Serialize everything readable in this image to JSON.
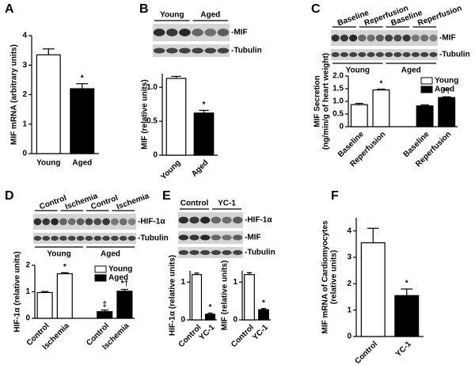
{
  "chart_data": [
    {
      "panel": "A",
      "type": "bar",
      "ylabel": [
        "MIF mRNA (arbitrary units)"
      ],
      "categories": [
        "Young",
        "Aged"
      ],
      "values": [
        3.35,
        2.2
      ],
      "errors": [
        0.2,
        0.17
      ],
      "colors": [
        "#ffffff",
        "#000000"
      ],
      "sig": [
        null,
        "*"
      ],
      "ylim": [
        0,
        4
      ],
      "yticks": [
        0,
        1,
        2,
        3,
        4
      ]
    },
    {
      "panel": "B",
      "type": "bar",
      "ylabel": [
        "MIF (relative units)"
      ],
      "categories": [
        "Young",
        "Aged"
      ],
      "values": [
        1.13,
        0.62
      ],
      "errors": [
        0.03,
        0.04
      ],
      "colors": [
        "#ffffff",
        "#000000"
      ],
      "sig": [
        null,
        "*"
      ],
      "ylim": [
        0,
        1.2
      ],
      "yticks": [
        0,
        0.5,
        {
          "value": 1,
          "label": "1.0"
        }
      ],
      "blot": {
        "top": [
          "Young",
          "Aged"
        ],
        "rows": [
          "-MIF",
          "-Tubulin"
        ]
      }
    },
    {
      "panel": "C",
      "type": "grouped_bar",
      "ylabel": [
        "MIF Secretion",
        "(ng/min/g of heart weight)"
      ],
      "categories": [
        "Baseline",
        "Reperfusion"
      ],
      "series": [
        {
          "name": "Young",
          "color": "#ffffff",
          "values": [
            0.87,
            1.45
          ],
          "errors": [
            0.05,
            0.03
          ],
          "sig": [
            null,
            "*"
          ]
        },
        {
          "name": "Aged",
          "color": "#000000",
          "values": [
            0.82,
            1.15
          ],
          "errors": [
            0.04,
            0.03
          ],
          "sig": [
            null,
            "*†"
          ]
        }
      ],
      "ylim": [
        0,
        2
      ],
      "yticks": [
        0,
        0.5,
        {
          "value": 1,
          "label": "1.0"
        },
        1.5,
        {
          "value": 2,
          "label": "2.0"
        }
      ],
      "blot": {
        "top": [
          "Baseline",
          "Reperfusion",
          "Baseline",
          "Reperfusion"
        ],
        "bottom": [
          "Young",
          "Aged"
        ],
        "rows": [
          "-MIF",
          "-Tubulin"
        ]
      }
    },
    {
      "panel": "D",
      "type": "grouped_bar",
      "ylabel": [
        "HIF-1α (relative units)"
      ],
      "categories": [
        "Control",
        "Ischemia"
      ],
      "series": [
        {
          "name": "Young",
          "color": "#ffffff",
          "values": [
            0.97,
            1.68
          ],
          "errors": [
            0.04,
            0.04
          ],
          "sig": [
            null,
            "*"
          ]
        },
        {
          "name": "Aged",
          "color": "#000000",
          "values": [
            0.25,
            1.02
          ],
          "errors": [
            0.06,
            0.07
          ],
          "sig": [
            "‡",
            "*†"
          ]
        }
      ],
      "ylim": [
        0,
        2
      ],
      "yticks": [
        0,
        1,
        2
      ],
      "blot": {
        "top": [
          "Control",
          "Ischemia",
          "Control",
          "Ischemia"
        ],
        "bottom": [
          "Young",
          "Aged"
        ],
        "rows": [
          "-HIF-1α",
          "-Tubulin"
        ]
      }
    },
    {
      "panel": "E",
      "type": "bar",
      "ylabel": [
        "HIF-1α (relative units)"
      ],
      "categories": [
        "Control",
        "YC-1"
      ],
      "values": [
        1.2,
        0.15
      ],
      "errors": [
        0.04,
        0.03
      ],
      "colors": [
        "#ffffff",
        "#000000"
      ],
      "sig": [
        null,
        "*"
      ],
      "ylim": [
        0,
        1.3
      ],
      "yticks": [
        0,
        1
      ],
      "blot": {
        "top": [
          "Control",
          "YC-1"
        ],
        "rows": [
          "-HIF-1α",
          "-MIF",
          "-Tubulin"
        ]
      }
    },
    {
      "type": "bar",
      "ylabel": [
        "MIF (relative units)"
      ],
      "categories": [
        "Control",
        "YC-1"
      ],
      "values": [
        1.2,
        0.27
      ],
      "errors": [
        0.05,
        0.03
      ],
      "colors": [
        "#ffffff",
        "#000000"
      ],
      "sig": [
        null,
        "*"
      ],
      "ylim": [
        0,
        1.3
      ],
      "yticks": [
        0,
        1
      ]
    },
    {
      "panel": "F",
      "type": "bar",
      "ylabel": [
        "MIF mRNA of Cardiomyocytes",
        "(relative units)"
      ],
      "categories": [
        "Control",
        "YC-1"
      ],
      "values": [
        3.55,
        1.55
      ],
      "errors": [
        0.55,
        0.25
      ],
      "colors": [
        "#ffffff",
        "#000000"
      ],
      "sig": [
        null,
        "*"
      ],
      "ylim": [
        0,
        4.5
      ],
      "yticks": [
        0,
        1,
        2,
        3,
        4
      ]
    }
  ]
}
